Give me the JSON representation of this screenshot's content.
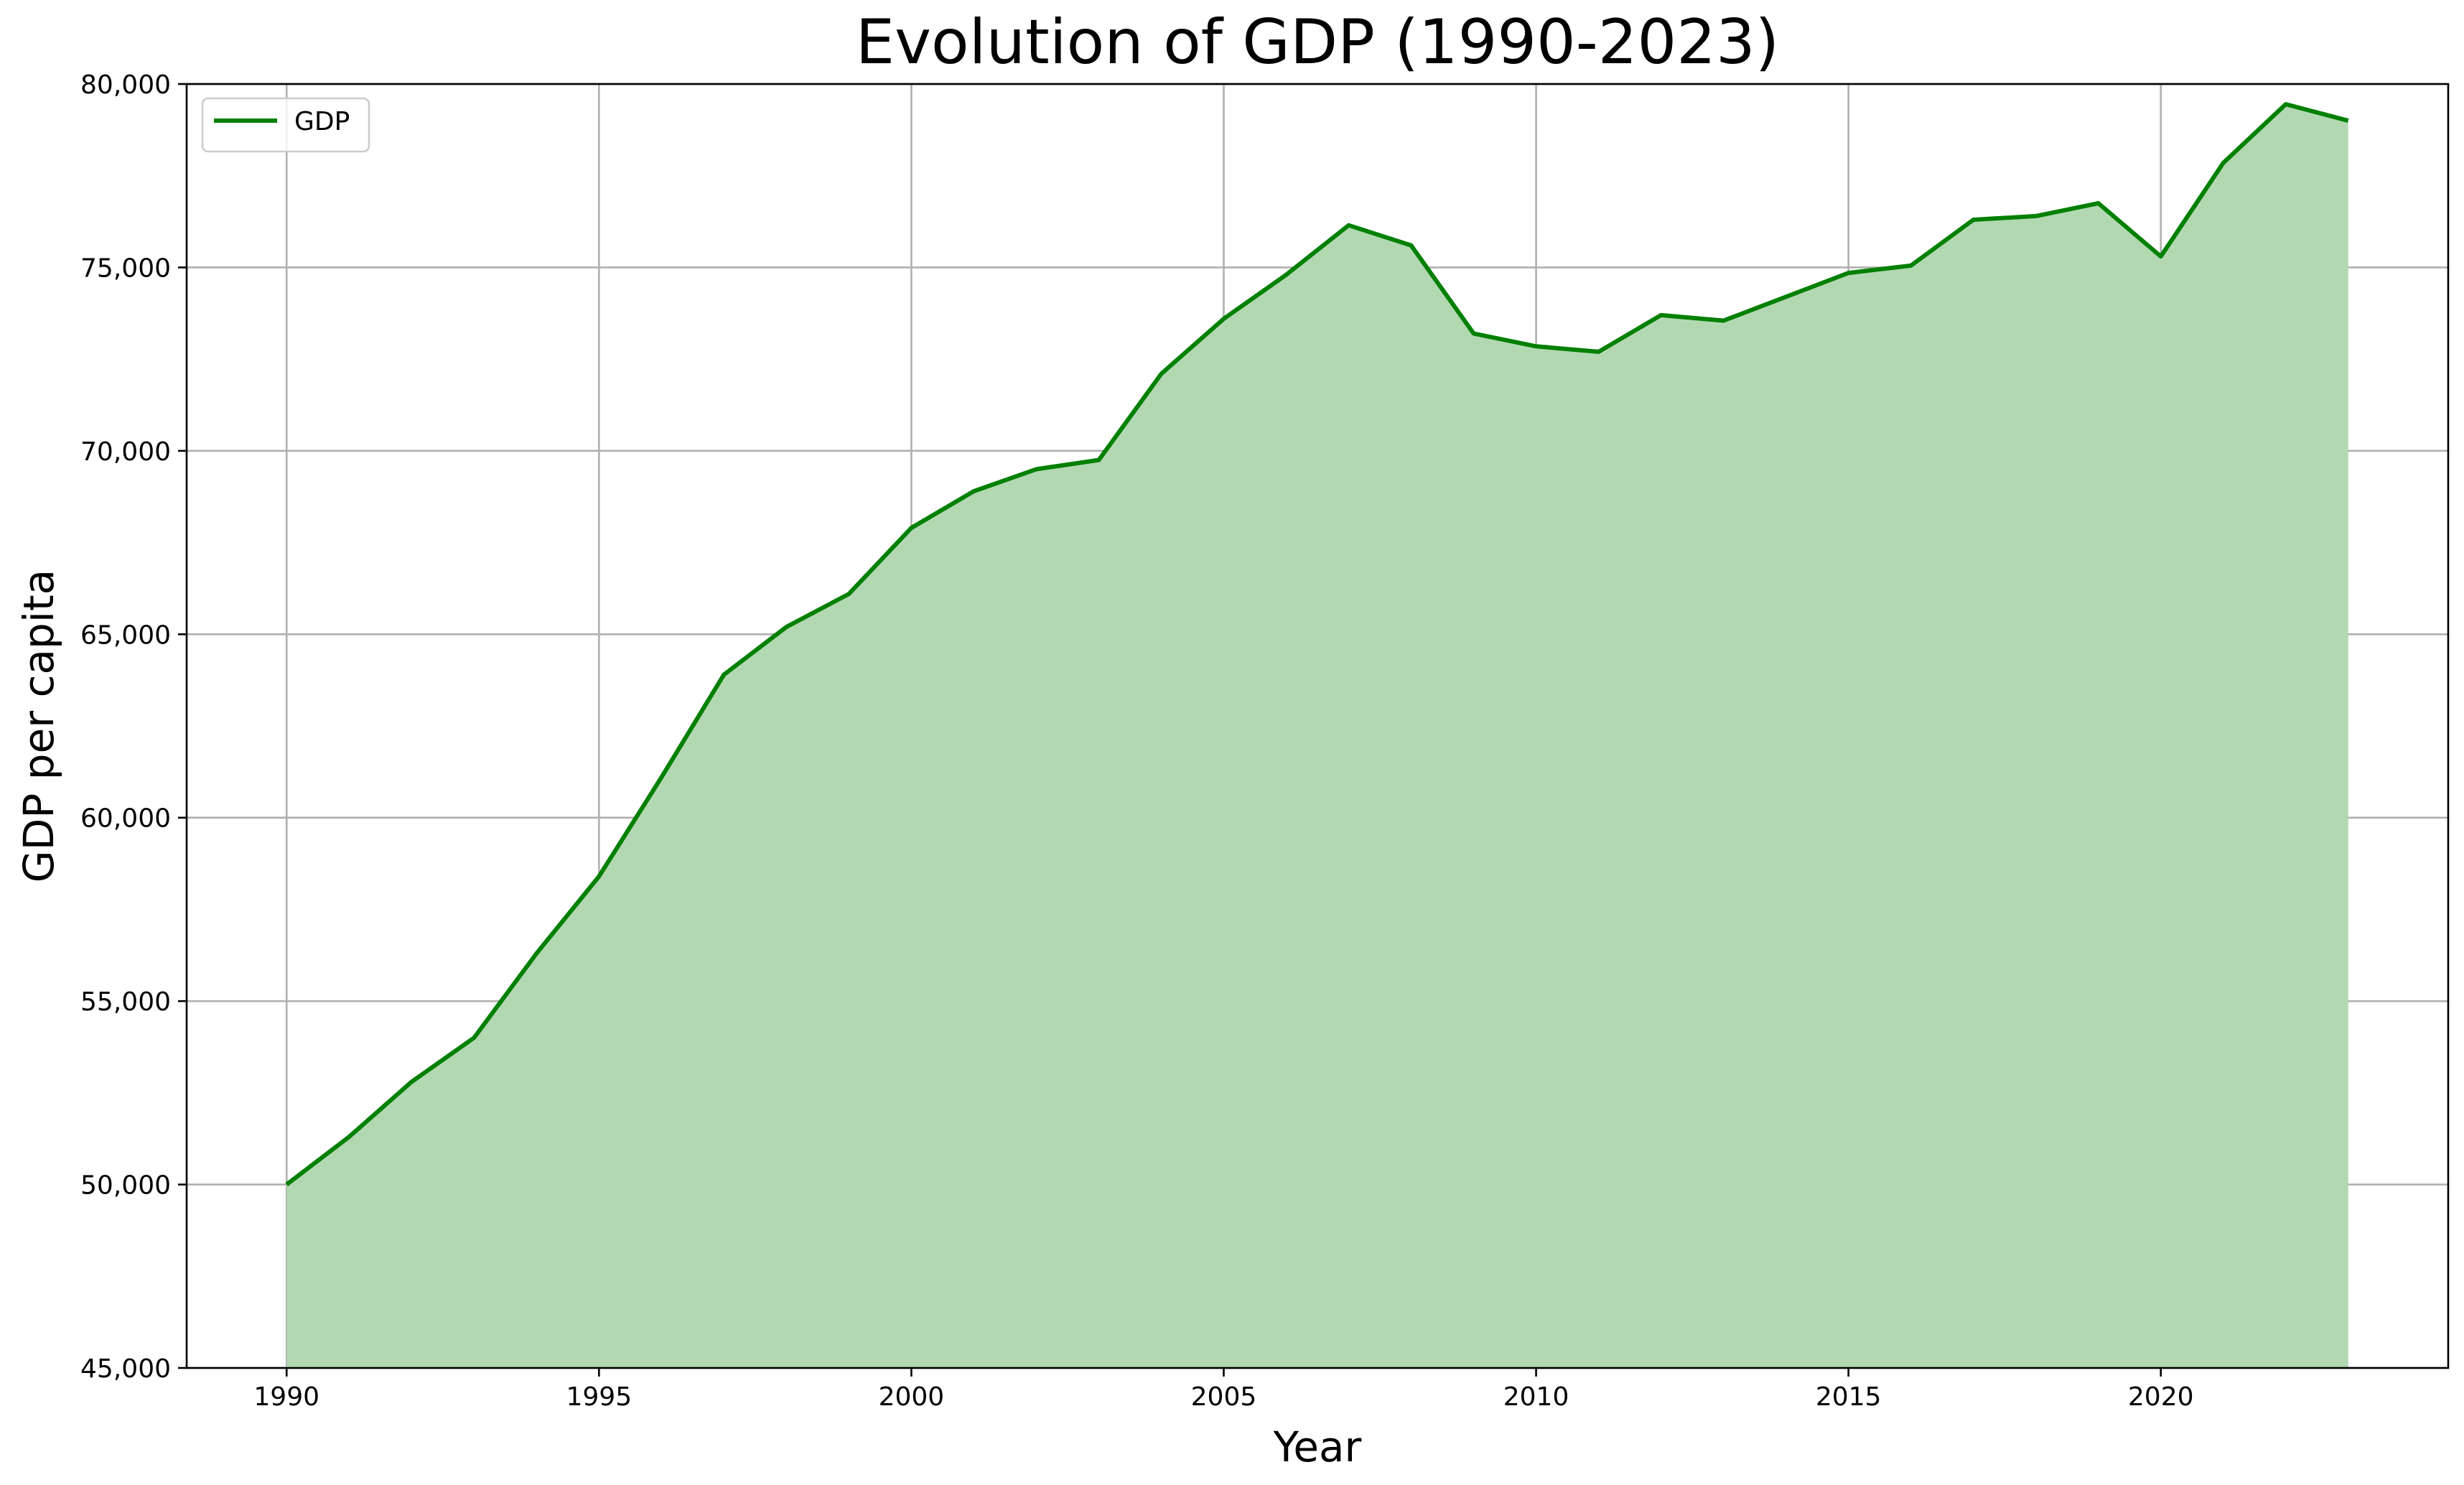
{
  "chart_data": {
    "type": "area",
    "title": "Evolution of GDP (1990-2023)",
    "xlabel": "Year",
    "ylabel": "GDP per capita",
    "xlim": [
      1988.4,
      2024.6
    ],
    "ylim": [
      45000,
      80000
    ],
    "x_ticks": [
      1990,
      1995,
      2000,
      2005,
      2010,
      2015,
      2020
    ],
    "y_ticks": [
      45000,
      50000,
      55000,
      60000,
      65000,
      70000,
      75000,
      80000
    ],
    "x_tick_labels": [
      "1990",
      "1995",
      "2000",
      "2005",
      "2010",
      "2015",
      "2020"
    ],
    "y_tick_labels": [
      "45,000",
      "50,000",
      "55,000",
      "60,000",
      "65,000",
      "70,000",
      "75,000",
      "80,000"
    ],
    "grid": true,
    "legend_position": "top-left",
    "series": [
      {
        "name": "GDP",
        "color": "#008000",
        "fill_color": "#b2d8b2",
        "x": [
          1990,
          1991,
          1992,
          1993,
          1994,
          1995,
          1996,
          1997,
          1998,
          1999,
          2000,
          2001,
          2002,
          2003,
          2004,
          2005,
          2006,
          2007,
          2008,
          2009,
          2010,
          2011,
          2012,
          2013,
          2014,
          2015,
          2016,
          2017,
          2018,
          2019,
          2020,
          2021,
          2022,
          2023
        ],
        "values": [
          50000,
          51300,
          52800,
          54000,
          56300,
          58400,
          61100,
          63900,
          65200,
          66100,
          67900,
          68900,
          69500,
          69750,
          72100,
          73600,
          74800,
          76150,
          75600,
          73200,
          72850,
          72700,
          73700,
          73550,
          74200,
          74850,
          75050,
          76300,
          76400,
          76750,
          75300,
          77850,
          79450,
          79000
        ]
      }
    ]
  }
}
